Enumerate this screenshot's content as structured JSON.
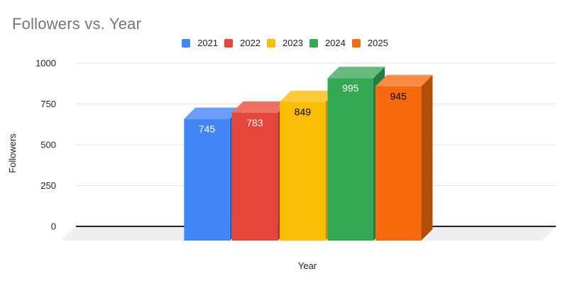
{
  "chart_data": {
    "type": "bar",
    "title": "Followers vs. Year",
    "xlabel": "Year",
    "ylabel": "Followers",
    "categories": [
      "2021",
      "2022",
      "2023",
      "2024",
      "2025"
    ],
    "values": [
      745,
      783,
      849,
      995,
      945
    ],
    "ylim": [
      0,
      1000
    ],
    "yticks": [
      0,
      250,
      500,
      750,
      1000
    ],
    "grid": true,
    "legend_position": "top",
    "style_3d": true,
    "series": [
      {
        "name": "2021",
        "value": 745,
        "front": "#4285f4",
        "top": "#699df7",
        "side": "#2a66c2",
        "label_color": "#ffffff"
      },
      {
        "name": "2022",
        "value": 783,
        "front": "#e6453a",
        "top": "#ee7164",
        "side": "#b03425",
        "label_color": "#ffffff"
      },
      {
        "name": "2023",
        "value": 849,
        "front": "#fbbc04",
        "top": "#fcc93a",
        "side": "#c1910a",
        "label_color": "#000000"
      },
      {
        "name": "2024",
        "value": 995,
        "front": "#34a853",
        "top": "#68ba80",
        "side": "#1d7e41",
        "label_color": "#ffffff"
      },
      {
        "name": "2025",
        "value": 945,
        "front": "#f6690d",
        "top": "#f88b43",
        "side": "#b34f04",
        "label_color": "#000000"
      }
    ],
    "palette": {
      "title_text": "#757575",
      "axis_text": "#1f1f1f",
      "legend_text": "#222222",
      "gridline": "#e2e2e2",
      "zero_line": "#212121",
      "floor": "#efefef",
      "background": "#ffffff"
    }
  }
}
